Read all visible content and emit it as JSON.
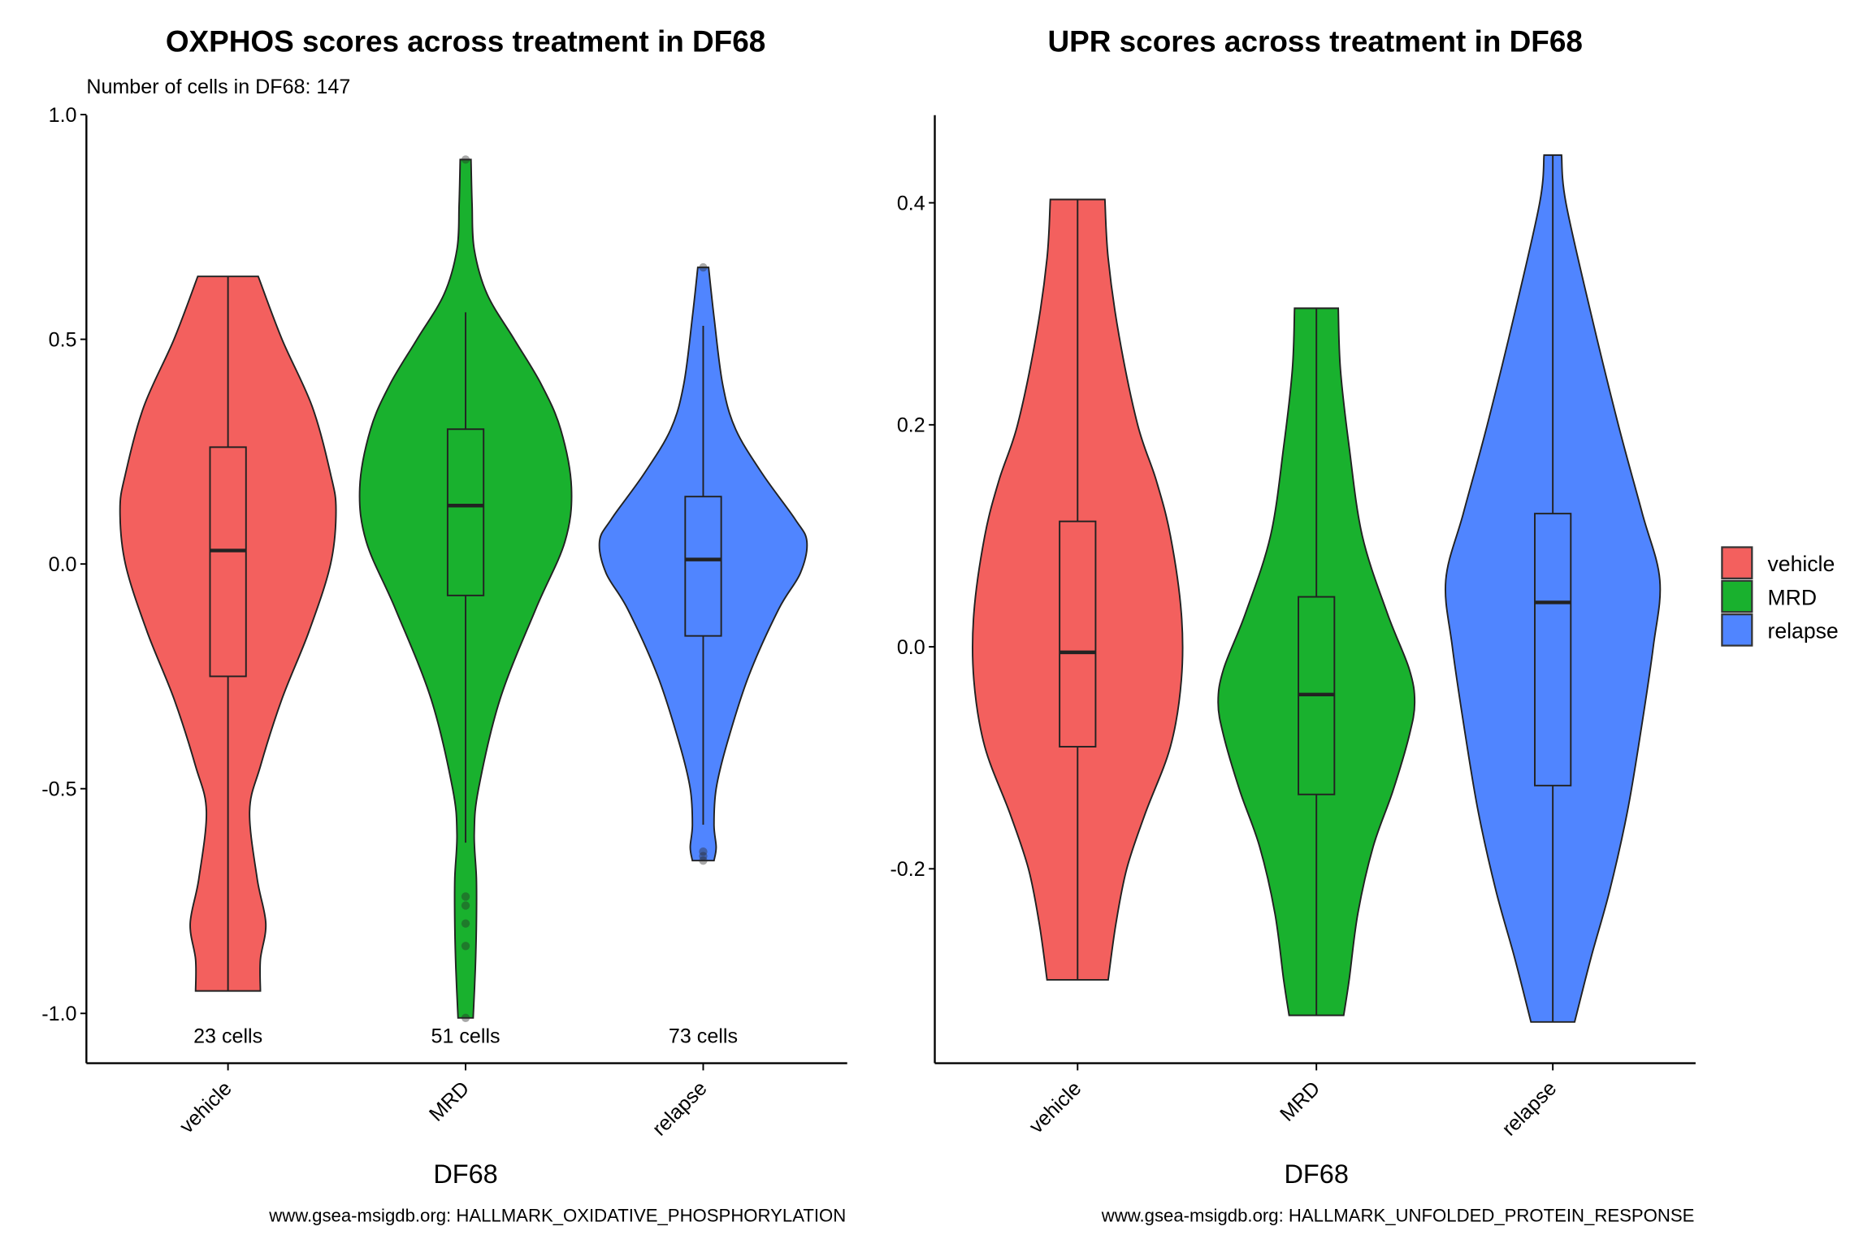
{
  "chart_data": [
    {
      "type": "violin",
      "title": "OXPHOS scores across treatment in DF68",
      "subtitle": "Number of cells in DF68: 147",
      "xlabel": "DF68",
      "ylabel": "",
      "caption": "www.gsea-msigdb.org: HALLMARK_OXIDATIVE_PHOSPHORYLATION",
      "ylim": [
        -1.1,
        1.0
      ],
      "yticks": [
        1.0,
        0.5,
        0.0,
        -0.5,
        -1.0
      ],
      "ytick_labels": [
        "1.0",
        "0.5",
        "0.0",
        "-0.5",
        "-1.0"
      ],
      "categories": [
        "vehicle",
        "MRD",
        "relapse"
      ],
      "cell_labels": [
        "23 cells",
        "51 cells",
        "73 cells"
      ],
      "series": [
        {
          "name": "vehicle",
          "color": "#F3605E",
          "min": -0.95,
          "q1": -0.25,
          "median": 0.03,
          "q3": 0.26,
          "max": 0.64,
          "whisker_low": -0.95,
          "whisker_high": 0.64,
          "outliers": [],
          "density": [
            [
              0.64,
              0.28
            ],
            [
              0.5,
              0.5
            ],
            [
              0.35,
              0.78
            ],
            [
              0.2,
              0.95
            ],
            [
              0.12,
              1.0
            ],
            [
              0.0,
              0.95
            ],
            [
              -0.15,
              0.75
            ],
            [
              -0.3,
              0.5
            ],
            [
              -0.45,
              0.3
            ],
            [
              -0.55,
              0.2
            ],
            [
              -0.7,
              0.27
            ],
            [
              -0.8,
              0.35
            ],
            [
              -0.88,
              0.3
            ],
            [
              -0.95,
              0.3
            ]
          ]
        },
        {
          "name": "MRD",
          "color": "#19B12E",
          "min": -1.01,
          "q1": -0.07,
          "median": 0.13,
          "q3": 0.3,
          "max": 0.9,
          "whisker_low": -0.62,
          "whisker_high": 0.56,
          "outliers": [
            0.9,
            -0.74,
            -0.76,
            -0.8,
            -0.85,
            -1.01
          ],
          "density": [
            [
              0.9,
              0.05
            ],
            [
              0.8,
              0.06
            ],
            [
              0.7,
              0.08
            ],
            [
              0.6,
              0.2
            ],
            [
              0.5,
              0.45
            ],
            [
              0.4,
              0.7
            ],
            [
              0.3,
              0.88
            ],
            [
              0.17,
              0.98
            ],
            [
              0.05,
              0.92
            ],
            [
              -0.1,
              0.65
            ],
            [
              -0.3,
              0.32
            ],
            [
              -0.5,
              0.12
            ],
            [
              -0.6,
              0.08
            ],
            [
              -0.7,
              0.1
            ],
            [
              -0.8,
              0.1
            ],
            [
              -0.9,
              0.09
            ],
            [
              -1.01,
              0.07
            ]
          ]
        },
        {
          "name": "relapse",
          "color": "#5085FF",
          "min": -0.66,
          "q1": -0.16,
          "median": 0.01,
          "q3": 0.15,
          "max": 0.66,
          "whisker_low": -0.58,
          "whisker_high": 0.53,
          "outliers": [
            0.66,
            -0.64,
            -0.65,
            -0.66
          ],
          "density": [
            [
              0.66,
              0.05
            ],
            [
              0.55,
              0.1
            ],
            [
              0.4,
              0.18
            ],
            [
              0.3,
              0.3
            ],
            [
              0.2,
              0.55
            ],
            [
              0.1,
              0.85
            ],
            [
              0.05,
              0.96
            ],
            [
              -0.02,
              0.9
            ],
            [
              -0.1,
              0.7
            ],
            [
              -0.25,
              0.42
            ],
            [
              -0.4,
              0.22
            ],
            [
              -0.5,
              0.12
            ],
            [
              -0.58,
              0.1
            ],
            [
              -0.63,
              0.12
            ],
            [
              -0.66,
              0.1
            ]
          ]
        }
      ]
    },
    {
      "type": "violin",
      "title": "UPR scores across treatment in DF68",
      "xlabel": "DF68",
      "ylabel": "",
      "caption": "www.gsea-msigdb.org: HALLMARK_UNFOLDED_PROTEIN_RESPONSE",
      "ylim": [
        -0.375,
        0.48
      ],
      "yticks": [
        0.4,
        0.2,
        0.0,
        -0.2
      ],
      "ytick_labels": [
        "0.4",
        "0.2",
        "0.0",
        "-0.2"
      ],
      "categories": [
        "vehicle",
        "MRD",
        "relapse"
      ],
      "series": [
        {
          "name": "vehicle",
          "color": "#F3605E",
          "min": -0.3,
          "q1": -0.09,
          "median": -0.005,
          "q3": 0.113,
          "max": 0.403,
          "whisker_low": -0.3,
          "whisker_high": 0.403,
          "density": [
            [
              0.403,
              0.25
            ],
            [
              0.35,
              0.28
            ],
            [
              0.28,
              0.38
            ],
            [
              0.2,
              0.55
            ],
            [
              0.15,
              0.72
            ],
            [
              0.1,
              0.85
            ],
            [
              0.03,
              0.95
            ],
            [
              -0.03,
              0.95
            ],
            [
              -0.09,
              0.85
            ],
            [
              -0.15,
              0.62
            ],
            [
              -0.2,
              0.45
            ],
            [
              -0.25,
              0.35
            ],
            [
              -0.3,
              0.28
            ]
          ]
        },
        {
          "name": "MRD",
          "color": "#19B12E",
          "min": -0.332,
          "q1": -0.133,
          "median": -0.043,
          "q3": 0.045,
          "max": 0.305,
          "whisker_low": -0.332,
          "whisker_high": 0.305,
          "density": [
            [
              0.305,
              0.2
            ],
            [
              0.25,
              0.22
            ],
            [
              0.18,
              0.3
            ],
            [
              0.1,
              0.42
            ],
            [
              0.03,
              0.65
            ],
            [
              -0.02,
              0.85
            ],
            [
              -0.05,
              0.9
            ],
            [
              -0.08,
              0.85
            ],
            [
              -0.13,
              0.7
            ],
            [
              -0.18,
              0.52
            ],
            [
              -0.24,
              0.38
            ],
            [
              -0.3,
              0.3
            ],
            [
              -0.332,
              0.25
            ]
          ]
        },
        {
          "name": "relapse",
          "color": "#5085FF",
          "min": -0.338,
          "q1": -0.125,
          "median": 0.04,
          "q3": 0.12,
          "max": 0.443,
          "whisker_low": -0.338,
          "whisker_high": 0.443,
          "density": [
            [
              0.443,
              0.08
            ],
            [
              0.4,
              0.12
            ],
            [
              0.3,
              0.35
            ],
            [
              0.2,
              0.6
            ],
            [
              0.12,
              0.82
            ],
            [
              0.06,
              0.98
            ],
            [
              0.0,
              0.92
            ],
            [
              -0.08,
              0.8
            ],
            [
              -0.15,
              0.68
            ],
            [
              -0.22,
              0.52
            ],
            [
              -0.28,
              0.35
            ],
            [
              -0.338,
              0.2
            ]
          ]
        }
      ],
      "legend": {
        "position": "right",
        "entries": [
          "vehicle",
          "MRD",
          "relapse"
        ]
      }
    }
  ]
}
